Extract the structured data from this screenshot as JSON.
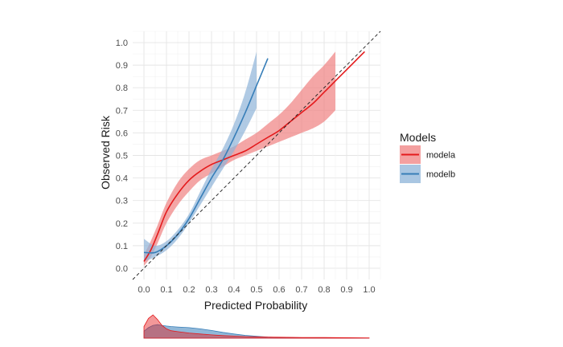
{
  "chart_data": {
    "type": "line",
    "title": "",
    "xlabel": "Predicted Probability",
    "ylabel": "Observed Risk",
    "xlim": [
      -0.05,
      1.05
    ],
    "ylim": [
      -0.05,
      1.05
    ],
    "x_ticks": [
      "0.0",
      "0.1",
      "0.2",
      "0.3",
      "0.4",
      "0.5",
      "0.6",
      "0.7",
      "0.8",
      "0.9",
      "1.0"
    ],
    "y_ticks": [
      "0.0",
      "0.1",
      "0.2",
      "0.3",
      "0.4",
      "0.5",
      "0.6",
      "0.7",
      "0.8",
      "0.9",
      "1.0"
    ],
    "grid": true,
    "reference_line": "diagonal y = x (dashed)",
    "legend": {
      "title": "Models",
      "placement": "right",
      "entries": [
        "modela",
        "modelb"
      ]
    },
    "series": [
      {
        "name": "modela",
        "color": "#e41a1c",
        "band_color": "#f08080",
        "x": [
          0.0,
          0.03,
          0.06,
          0.1,
          0.15,
          0.2,
          0.25,
          0.3,
          0.35,
          0.4,
          0.45,
          0.5,
          0.55,
          0.6,
          0.65,
          0.7,
          0.75,
          0.8,
          0.85,
          0.9,
          0.95,
          0.98
        ],
        "y": [
          0.03,
          0.08,
          0.15,
          0.25,
          0.33,
          0.39,
          0.43,
          0.46,
          0.48,
          0.5,
          0.52,
          0.55,
          0.58,
          0.61,
          0.65,
          0.69,
          0.73,
          0.78,
          0.83,
          0.88,
          0.93,
          0.96
        ],
        "lower": [
          0.01,
          0.05,
          0.11,
          0.2,
          0.28,
          0.34,
          0.39,
          0.42,
          0.45,
          0.48,
          0.5,
          0.52,
          0.54,
          0.56,
          0.58,
          0.6,
          0.62,
          0.65,
          0.7,
          null,
          null,
          null
        ],
        "upper": [
          0.06,
          0.12,
          0.19,
          0.29,
          0.38,
          0.44,
          0.48,
          0.5,
          0.52,
          0.54,
          0.57,
          0.6,
          0.64,
          0.68,
          0.73,
          0.79,
          0.85,
          0.9,
          0.96,
          null,
          null,
          null
        ]
      },
      {
        "name": "modelb",
        "color": "#377eb8",
        "band_color": "#8fb4d9",
        "x": [
          0.0,
          0.05,
          0.1,
          0.15,
          0.2,
          0.25,
          0.3,
          0.35,
          0.4,
          0.45,
          0.5,
          0.55
        ],
        "y": [
          0.07,
          0.07,
          0.1,
          0.15,
          0.22,
          0.31,
          0.4,
          0.48,
          0.58,
          0.69,
          0.81,
          0.93
        ],
        "lower": [
          0.03,
          0.05,
          0.08,
          0.13,
          0.2,
          0.28,
          0.36,
          0.44,
          0.52,
          0.61,
          0.71,
          null
        ],
        "upper": [
          0.13,
          0.1,
          0.12,
          0.17,
          0.24,
          0.34,
          0.44,
          0.53,
          0.64,
          0.78,
          0.96,
          null
        ]
      }
    ],
    "marginal_density": {
      "description": "distribution of predicted probabilities per model",
      "x": [
        0.0,
        0.02,
        0.04,
        0.06,
        0.08,
        0.1,
        0.12,
        0.15,
        0.2,
        0.25,
        0.3,
        0.35,
        0.4,
        0.45,
        0.5,
        0.55,
        0.6,
        0.7,
        0.8,
        0.9,
        1.0
      ],
      "modela": [
        0.5,
        0.85,
        1.0,
        0.8,
        0.55,
        0.4,
        0.32,
        0.28,
        0.22,
        0.18,
        0.14,
        0.11,
        0.09,
        0.07,
        0.06,
        0.05,
        0.04,
        0.03,
        0.03,
        0.02,
        0.01
      ],
      "modelb": [
        0.3,
        0.45,
        0.55,
        0.58,
        0.55,
        0.52,
        0.5,
        0.48,
        0.45,
        0.4,
        0.33,
        0.25,
        0.18,
        0.12,
        0.08,
        0.05,
        0.03,
        0.02,
        0.01,
        0.01,
        0.0
      ]
    }
  }
}
